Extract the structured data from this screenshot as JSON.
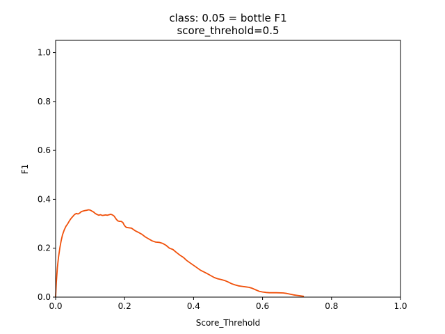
{
  "chart_data": {
    "type": "line",
    "title": "class: 0.05 = bottle F1",
    "subtitle": "score_threhold=0.5",
    "xlabel": "Score_Threhold",
    "ylabel": "F1",
    "xlim": [
      0.0,
      1.0
    ],
    "ylim": [
      0.0,
      1.05
    ],
    "xticks": [
      "0.0",
      "0.2",
      "0.4",
      "0.6",
      "0.8",
      "1.0"
    ],
    "yticks": [
      "0.0",
      "0.2",
      "0.4",
      "0.6",
      "0.8",
      "1.0"
    ],
    "grid": false,
    "legend": "none",
    "series": [
      {
        "color": "#f0500a",
        "points": [
          [
            0.0,
            0.0
          ],
          [
            0.002,
            0.06
          ],
          [
            0.005,
            0.12
          ],
          [
            0.008,
            0.16
          ],
          [
            0.012,
            0.2
          ],
          [
            0.016,
            0.23
          ],
          [
            0.02,
            0.255
          ],
          [
            0.025,
            0.275
          ],
          [
            0.03,
            0.29
          ],
          [
            0.035,
            0.3
          ],
          [
            0.04,
            0.312
          ],
          [
            0.045,
            0.322
          ],
          [
            0.05,
            0.33
          ],
          [
            0.055,
            0.338
          ],
          [
            0.06,
            0.342
          ],
          [
            0.065,
            0.34
          ],
          [
            0.07,
            0.344
          ],
          [
            0.075,
            0.35
          ],
          [
            0.08,
            0.352
          ],
          [
            0.085,
            0.354
          ],
          [
            0.09,
            0.355
          ],
          [
            0.095,
            0.357
          ],
          [
            0.1,
            0.356
          ],
          [
            0.105,
            0.352
          ],
          [
            0.11,
            0.348
          ],
          [
            0.115,
            0.342
          ],
          [
            0.12,
            0.338
          ],
          [
            0.125,
            0.335
          ],
          [
            0.13,
            0.337
          ],
          [
            0.135,
            0.334
          ],
          [
            0.14,
            0.335
          ],
          [
            0.145,
            0.336
          ],
          [
            0.15,
            0.335
          ],
          [
            0.155,
            0.337
          ],
          [
            0.16,
            0.339
          ],
          [
            0.165,
            0.336
          ],
          [
            0.17,
            0.331
          ],
          [
            0.175,
            0.32
          ],
          [
            0.18,
            0.312
          ],
          [
            0.185,
            0.31
          ],
          [
            0.19,
            0.31
          ],
          [
            0.195,
            0.305
          ],
          [
            0.2,
            0.292
          ],
          [
            0.205,
            0.285
          ],
          [
            0.21,
            0.284
          ],
          [
            0.22,
            0.282
          ],
          [
            0.23,
            0.272
          ],
          [
            0.24,
            0.265
          ],
          [
            0.25,
            0.257
          ],
          [
            0.26,
            0.246
          ],
          [
            0.27,
            0.238
          ],
          [
            0.28,
            0.23
          ],
          [
            0.29,
            0.225
          ],
          [
            0.3,
            0.224
          ],
          [
            0.31,
            0.22
          ],
          [
            0.32,
            0.212
          ],
          [
            0.33,
            0.2
          ],
          [
            0.34,
            0.195
          ],
          [
            0.35,
            0.183
          ],
          [
            0.36,
            0.172
          ],
          [
            0.37,
            0.163
          ],
          [
            0.38,
            0.15
          ],
          [
            0.39,
            0.14
          ],
          [
            0.4,
            0.13
          ],
          [
            0.41,
            0.12
          ],
          [
            0.42,
            0.11
          ],
          [
            0.43,
            0.103
          ],
          [
            0.44,
            0.096
          ],
          [
            0.45,
            0.088
          ],
          [
            0.46,
            0.08
          ],
          [
            0.47,
            0.075
          ],
          [
            0.48,
            0.072
          ],
          [
            0.49,
            0.068
          ],
          [
            0.5,
            0.062
          ],
          [
            0.51,
            0.055
          ],
          [
            0.52,
            0.05
          ],
          [
            0.53,
            0.046
          ],
          [
            0.54,
            0.044
          ],
          [
            0.55,
            0.042
          ],
          [
            0.56,
            0.04
          ],
          [
            0.57,
            0.036
          ],
          [
            0.58,
            0.03
          ],
          [
            0.59,
            0.024
          ],
          [
            0.6,
            0.021
          ],
          [
            0.61,
            0.019
          ],
          [
            0.62,
            0.018
          ],
          [
            0.64,
            0.018
          ],
          [
            0.66,
            0.017
          ],
          [
            0.67,
            0.015
          ],
          [
            0.68,
            0.012
          ],
          [
            0.69,
            0.009
          ],
          [
            0.7,
            0.007
          ],
          [
            0.71,
            0.005
          ],
          [
            0.72,
            0.003
          ]
        ]
      }
    ]
  }
}
